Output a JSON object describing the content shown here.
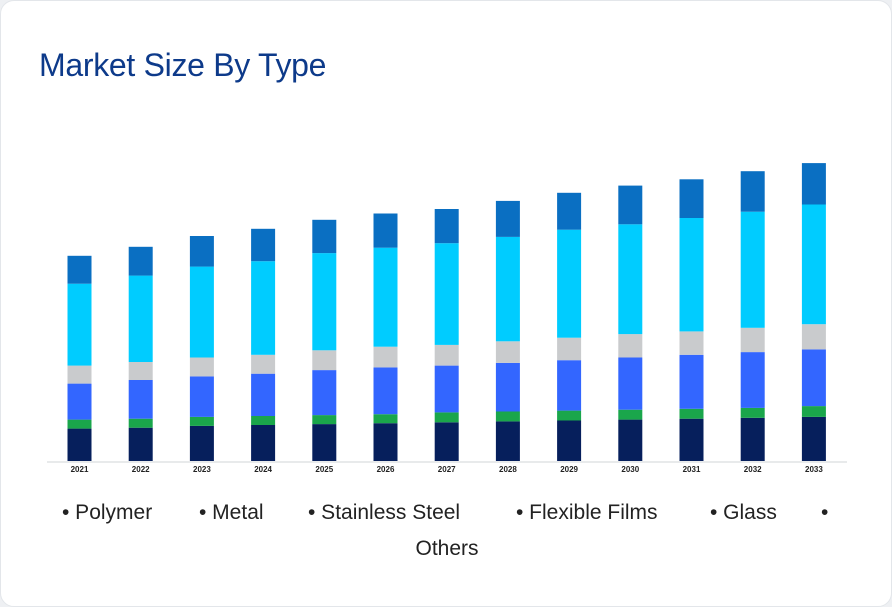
{
  "chart_data": {
    "type": "bar",
    "stacked": true,
    "title": "Market Size By Type",
    "categories": [
      "2021",
      "2022",
      "2023",
      "2024",
      "2025",
      "2026",
      "2027",
      "2028",
      "2029",
      "2030",
      "2031",
      "2032",
      "2033"
    ],
    "series": [
      {
        "name": "Polymer",
        "color": "#061f5c",
        "values": [
          36,
          37,
          39,
          40,
          41,
          42,
          43,
          44,
          45,
          46,
          47,
          48,
          49
        ]
      },
      {
        "name": "Metal",
        "color": "#1aa64b",
        "values": [
          10,
          10,
          10,
          10,
          10,
          10,
          11,
          11,
          11,
          11,
          11,
          11,
          12
        ]
      },
      {
        "name": "Stainless Steel",
        "color": "#3366ff",
        "values": [
          40,
          43,
          45,
          47,
          50,
          52,
          52,
          54,
          56,
          58,
          60,
          62,
          63
        ]
      },
      {
        "name": "Flexible Films",
        "color": "#c9cbcd",
        "values": [
          20,
          20,
          21,
          21,
          22,
          23,
          23,
          24,
          25,
          26,
          26,
          27,
          28
        ]
      },
      {
        "name": "Glass",
        "color": "#00ccff",
        "values": [
          91,
          96,
          101,
          104,
          108,
          110,
          113,
          116,
          120,
          122,
          126,
          129,
          133
        ]
      },
      {
        "name": "Others",
        "color": "#0a6fc2",
        "values": [
          31,
          32,
          34,
          36,
          37,
          38,
          38,
          40,
          41,
          43,
          43,
          45,
          46
        ]
      }
    ],
    "ylim": [
      0,
      400
    ],
    "xlabel": "",
    "ylabel": "",
    "grid": false,
    "legend_position": "bottom"
  }
}
